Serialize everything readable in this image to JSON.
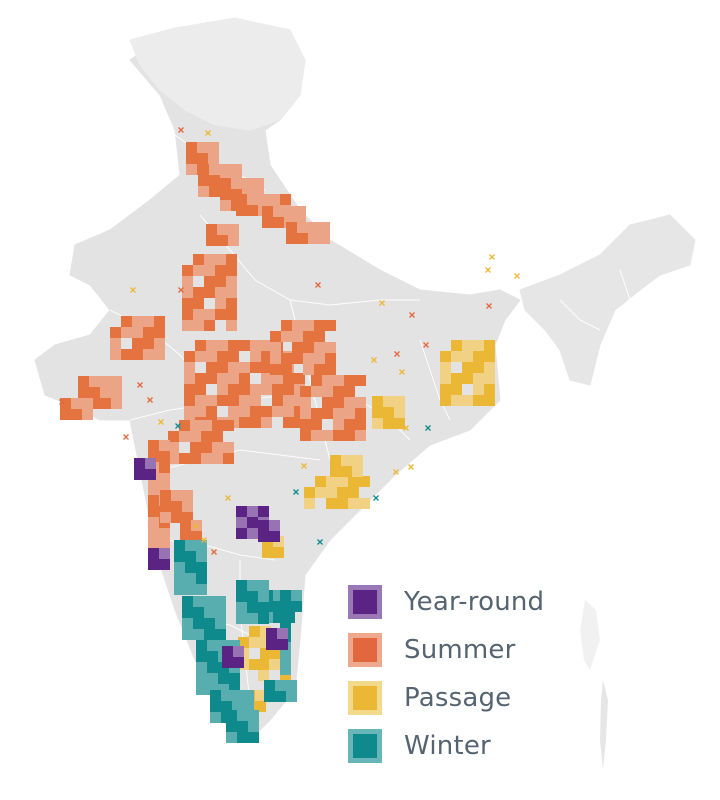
{
  "legend": {
    "items": [
      {
        "label": "Year-round",
        "color": "#5b2383",
        "edge": "#9a77b6"
      },
      {
        "label": "Summer",
        "color": "#e2673e",
        "edge": "#eea88e"
      },
      {
        "label": "Passage",
        "color": "#ebb836",
        "edge": "#f3d98b"
      },
      {
        "label": "Winter",
        "color": "#0e8a8c",
        "edge": "#68b6b7"
      }
    ]
  },
  "colors": {
    "land": "#e4e4e4",
    "land_light": "#eeeeee",
    "borders": "#ffffff",
    "text": "#566472"
  }
}
